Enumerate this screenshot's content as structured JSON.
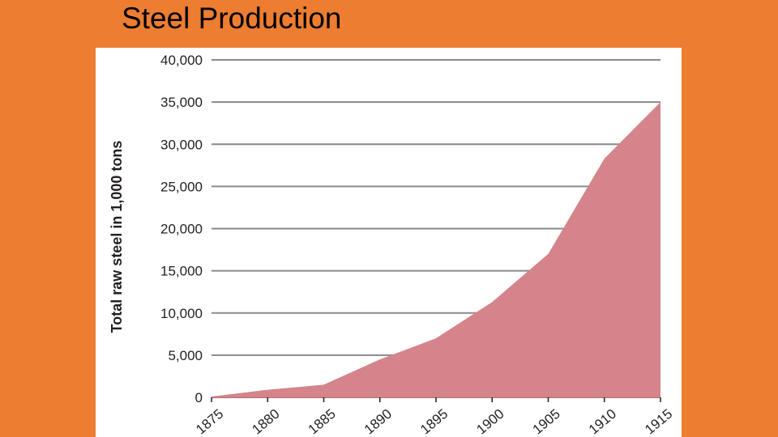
{
  "slide": {
    "title": "Steel Production",
    "background_color": "#ED7D31"
  },
  "chart_data": {
    "type": "area",
    "title": "",
    "xlabel": "",
    "ylabel": "Total raw steel in 1,000 tons",
    "x": [
      1875,
      1880,
      1885,
      1890,
      1895,
      1900,
      1905,
      1910,
      1915
    ],
    "categories": [
      "1875",
      "1880",
      "1885",
      "1890",
      "1895",
      "1900",
      "1905",
      "1910",
      "1915"
    ],
    "series": [
      {
        "name": "Total raw steel",
        "values": [
          100,
          900,
          1500,
          4500,
          7000,
          11300,
          17000,
          28300,
          35000
        ],
        "color": "#D4848A"
      }
    ],
    "yticks": [
      0,
      5000,
      10000,
      15000,
      20000,
      25000,
      30000,
      35000,
      40000
    ],
    "ytick_labels": [
      "0",
      "5,000",
      "10,000",
      "15,000",
      "20,000",
      "25,000",
      "30,000",
      "35,000",
      "40,000"
    ],
    "ylim": [
      0,
      40000
    ],
    "xlim": [
      1875,
      1915
    ],
    "grid": true,
    "grid_color": "#8A8A8A",
    "text_color": "#231F20"
  }
}
